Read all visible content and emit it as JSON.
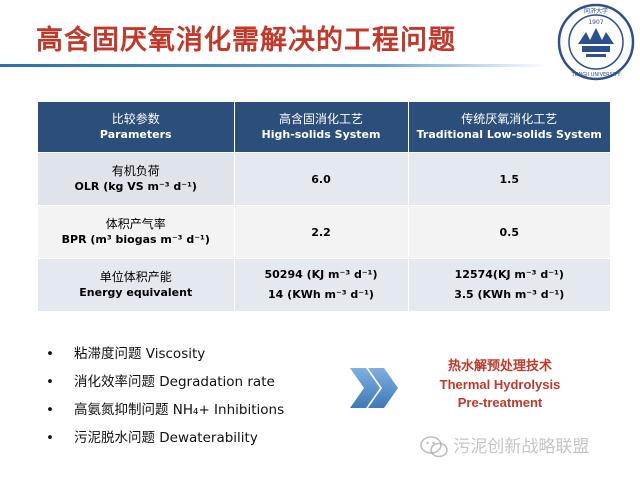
{
  "title": "高含固厌氧消化需解决的工程问题",
  "logo": {
    "text_top": "同济大学",
    "year": "1907",
    "text_bottom": "TONGJI UNIVERSITY"
  },
  "table": {
    "headers": [
      {
        "zh": "比较参数",
        "en": "Parameters"
      },
      {
        "zh": "高含固消化工艺",
        "en": "High-solids System"
      },
      {
        "zh": "传统厌氧消化工艺",
        "en": "Traditional Low-solids System"
      }
    ],
    "rows": [
      {
        "param_zh": "有机负荷",
        "param_en": "OLR (kg VS m⁻³ d⁻¹)",
        "high": "6.0",
        "low": "1.5"
      },
      {
        "param_zh": "体积产气率",
        "param_en": "BPR (m³ biogas m⁻³ d⁻¹)",
        "high": "2.2",
        "low": "0.5"
      },
      {
        "param_zh": "单位体积产能",
        "param_en": "Energy equivalent",
        "high_1": "50294 (KJ m⁻³ d⁻¹)",
        "high_2": "14 (KWh m⁻³ d⁻¹)",
        "low_1": "12574(KJ m⁻³ d⁻¹)",
        "low_2": "3.5 (KWh m⁻³ d⁻¹)"
      }
    ]
  },
  "bullets": [
    "粘滞度问题  Viscosity",
    "消化效率问题 Degradation rate",
    "高氨氮抑制问题 NH₄+ Inhibitions",
    "污泥脱水问题  Dewaterability"
  ],
  "bullet_symbol": "•",
  "solution": {
    "zh": "热水解预处理技术",
    "en_1": "Thermal Hydrolysis",
    "en_2": "Pre-treatment"
  },
  "watermark": "污泥创新战略联盟",
  "colors": {
    "title": "#c0392b",
    "header_bg": "#2b4f7a",
    "accent_red": "#c0392b",
    "chevron": "#5b8fc7"
  }
}
